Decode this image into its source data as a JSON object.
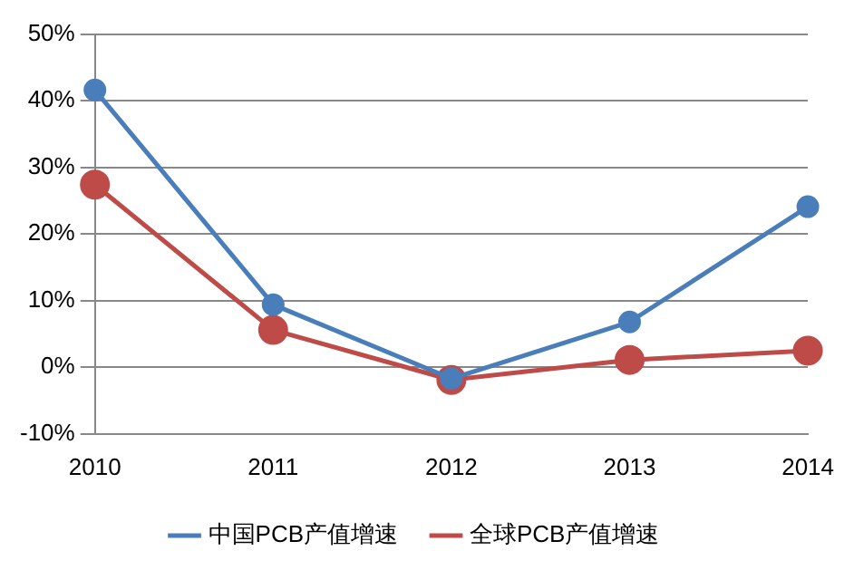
{
  "chart_data": {
    "type": "line",
    "categories": [
      "2010",
      "2011",
      "2012",
      "2013",
      "2014"
    ],
    "series": [
      {
        "name": "中国PCB产值增速",
        "color": "#4a7ebb",
        "values": [
          41.6,
          9.4,
          -1.7,
          6.8,
          24.1
        ]
      },
      {
        "name": "全球PCB产值增速",
        "color": "#be4b48",
        "values": [
          27.4,
          5.6,
          -1.9,
          1.1,
          2.5
        ]
      }
    ],
    "ylim": [
      -10,
      50
    ],
    "yticks": [
      {
        "value": -10,
        "label": "-10%"
      },
      {
        "value": 0,
        "label": "0%"
      },
      {
        "value": 10,
        "label": "10%"
      },
      {
        "value": 20,
        "label": "20%"
      },
      {
        "value": 30,
        "label": "30%"
      },
      {
        "value": 40,
        "label": "40%"
      },
      {
        "value": 50,
        "label": "50%"
      }
    ],
    "grid": "y",
    "legend": "bottom",
    "marker": "circle",
    "line_style": "solid"
  }
}
